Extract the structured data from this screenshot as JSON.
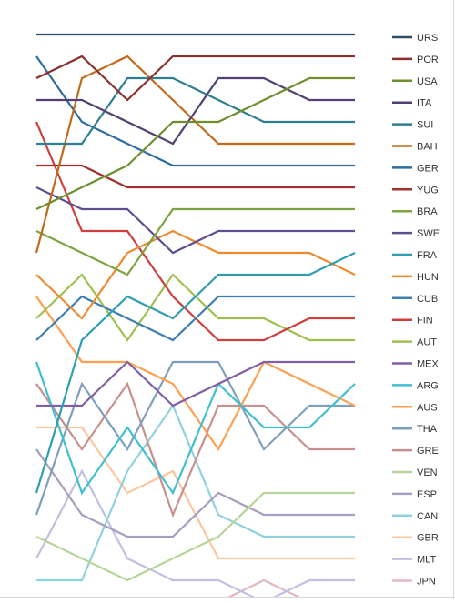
{
  "chart_data": {
    "type": "line",
    "x": [
      0,
      1,
      2,
      3,
      4,
      5,
      6,
      7
    ],
    "ylim": [
      1,
      26
    ],
    "y_inverted": true,
    "grid": false,
    "legend_position": "right",
    "series": [
      {
        "name": "URS",
        "color": "#2f4d63",
        "values": [
          1,
          1,
          1,
          1,
          1,
          1,
          1,
          1
        ]
      },
      {
        "name": "POR",
        "color": "#8c2f2f",
        "values": [
          3,
          2,
          4,
          2,
          2,
          2,
          2,
          2
        ]
      },
      {
        "name": "USA",
        "color": "#6f8f2f",
        "values": [
          9,
          8,
          7,
          5,
          5,
          4,
          3,
          3
        ]
      },
      {
        "name": "ITA",
        "color": "#52416f",
        "values": [
          4,
          4,
          5,
          6,
          3,
          3,
          4,
          4
        ]
      },
      {
        "name": "SUI",
        "color": "#2f7f8f",
        "values": [
          6,
          6,
          3,
          3,
          4,
          5,
          5,
          5
        ]
      },
      {
        "name": "BAH",
        "color": "#c06a1e",
        "values": [
          11,
          3,
          2,
          4,
          6,
          6,
          6,
          6
        ]
      },
      {
        "name": "GER",
        "color": "#2f6d9f",
        "values": [
          2,
          5,
          6,
          7,
          7,
          7,
          7,
          7
        ]
      },
      {
        "name": "YUG",
        "color": "#a32f2f",
        "values": [
          7,
          7,
          8,
          8,
          8,
          8,
          8,
          8
        ]
      },
      {
        "name": "BRA",
        "color": "#7fa33f",
        "values": [
          10,
          11,
          12,
          9,
          9,
          9,
          9,
          9
        ]
      },
      {
        "name": "SWE",
        "color": "#5f4f8f",
        "values": [
          8,
          9,
          9,
          11,
          10,
          10,
          10,
          10
        ]
      },
      {
        "name": "FRA",
        "color": "#2f9fb0",
        "values": [
          22,
          15,
          13,
          14,
          12,
          12,
          12,
          11
        ]
      },
      {
        "name": "HUN",
        "color": "#ee8a2f",
        "values": [
          12,
          14,
          11,
          10,
          11,
          11,
          11,
          12
        ]
      },
      {
        "name": "CUB",
        "color": "#3f7fb0",
        "values": [
          15,
          13,
          14,
          15,
          13,
          13,
          13,
          13
        ]
      },
      {
        "name": "FIN",
        "color": "#cf3f3f",
        "values": [
          5,
          10,
          10,
          13,
          15,
          15,
          14,
          14
        ]
      },
      {
        "name": "AUT",
        "color": "#9fbf4f",
        "values": [
          14,
          12,
          15,
          12,
          14,
          14,
          15,
          15
        ]
      },
      {
        "name": "MEX",
        "color": "#7f5fa6",
        "values": [
          18,
          18,
          16,
          18,
          17,
          16,
          16,
          16
        ]
      },
      {
        "name": "ARG",
        "color": "#3fbfcf",
        "values": [
          16,
          22,
          19,
          22,
          17,
          19,
          19,
          17
        ]
      },
      {
        "name": "AUS",
        "color": "#ff9f4f",
        "values": [
          13,
          16,
          16,
          17,
          20,
          16,
          17,
          18
        ]
      },
      {
        "name": "THA",
        "color": "#7f9fbf",
        "values": [
          23,
          17,
          20,
          16,
          16,
          20,
          18,
          18
        ]
      },
      {
        "name": "GRE",
        "color": "#c98f8f",
        "values": [
          17,
          20,
          17,
          23,
          18,
          18,
          20,
          20
        ]
      },
      {
        "name": "VEN",
        "color": "#b8d49a",
        "values": [
          24,
          25,
          26,
          25,
          24,
          22,
          22,
          22
        ]
      },
      {
        "name": "ESP",
        "color": "#a79fbf",
        "values": [
          20,
          23,
          24,
          24,
          22,
          23,
          23,
          23
        ]
      },
      {
        "name": "CAN",
        "color": "#8fd1dd",
        "values": [
          26,
          26,
          21,
          18,
          23,
          24,
          24,
          24
        ]
      },
      {
        "name": "GBR",
        "color": "#fbc79f",
        "values": [
          19,
          19,
          22,
          21,
          25,
          25,
          25,
          25
        ]
      },
      {
        "name": "MLT",
        "color": "#c0c0e0",
        "values": [
          25,
          21,
          25,
          26,
          26,
          27,
          26,
          26
        ]
      },
      {
        "name": "JPN",
        "color": "#e0b8c0",
        "values": [
          27,
          27,
          27,
          27,
          27,
          26,
          27,
          27
        ]
      }
    ]
  }
}
